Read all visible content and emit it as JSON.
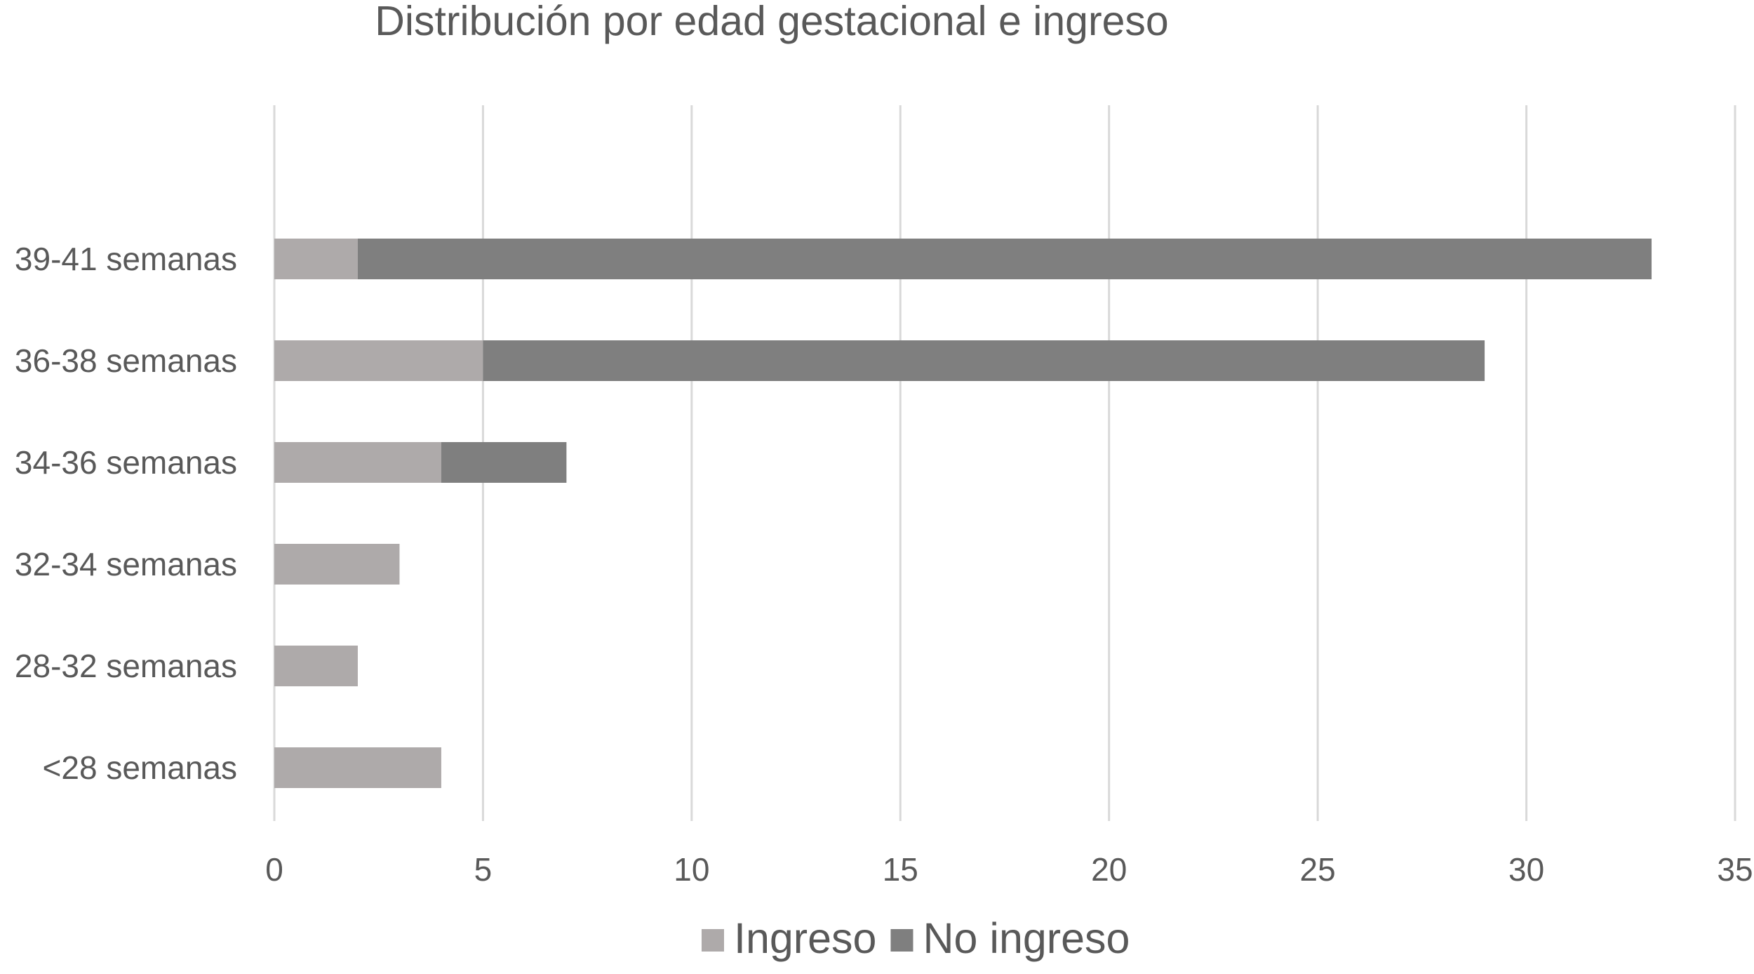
{
  "chart_data": {
    "type": "bar",
    "orientation": "horizontal",
    "stacked": true,
    "title": "Distribución por edad gestacional e ingreso",
    "categories": [
      "39-41 semanas",
      "36-38 semanas",
      "34-36 semanas",
      "32-34 semanas",
      "28-32 semanas",
      "<28 semanas"
    ],
    "series": [
      {
        "name": "Ingreso",
        "color": "#aeaaaa",
        "values": [
          2,
          5,
          4,
          3,
          2,
          4
        ]
      },
      {
        "name": "No ingreso",
        "color": "#7f7f7f",
        "values": [
          31,
          24,
          3,
          0,
          0,
          0
        ]
      }
    ],
    "xlim": [
      0,
      35
    ],
    "xticks": [
      "0",
      "5",
      "10",
      "15",
      "20",
      "25",
      "30",
      "35"
    ],
    "grid": true,
    "legend_position": "bottom"
  }
}
